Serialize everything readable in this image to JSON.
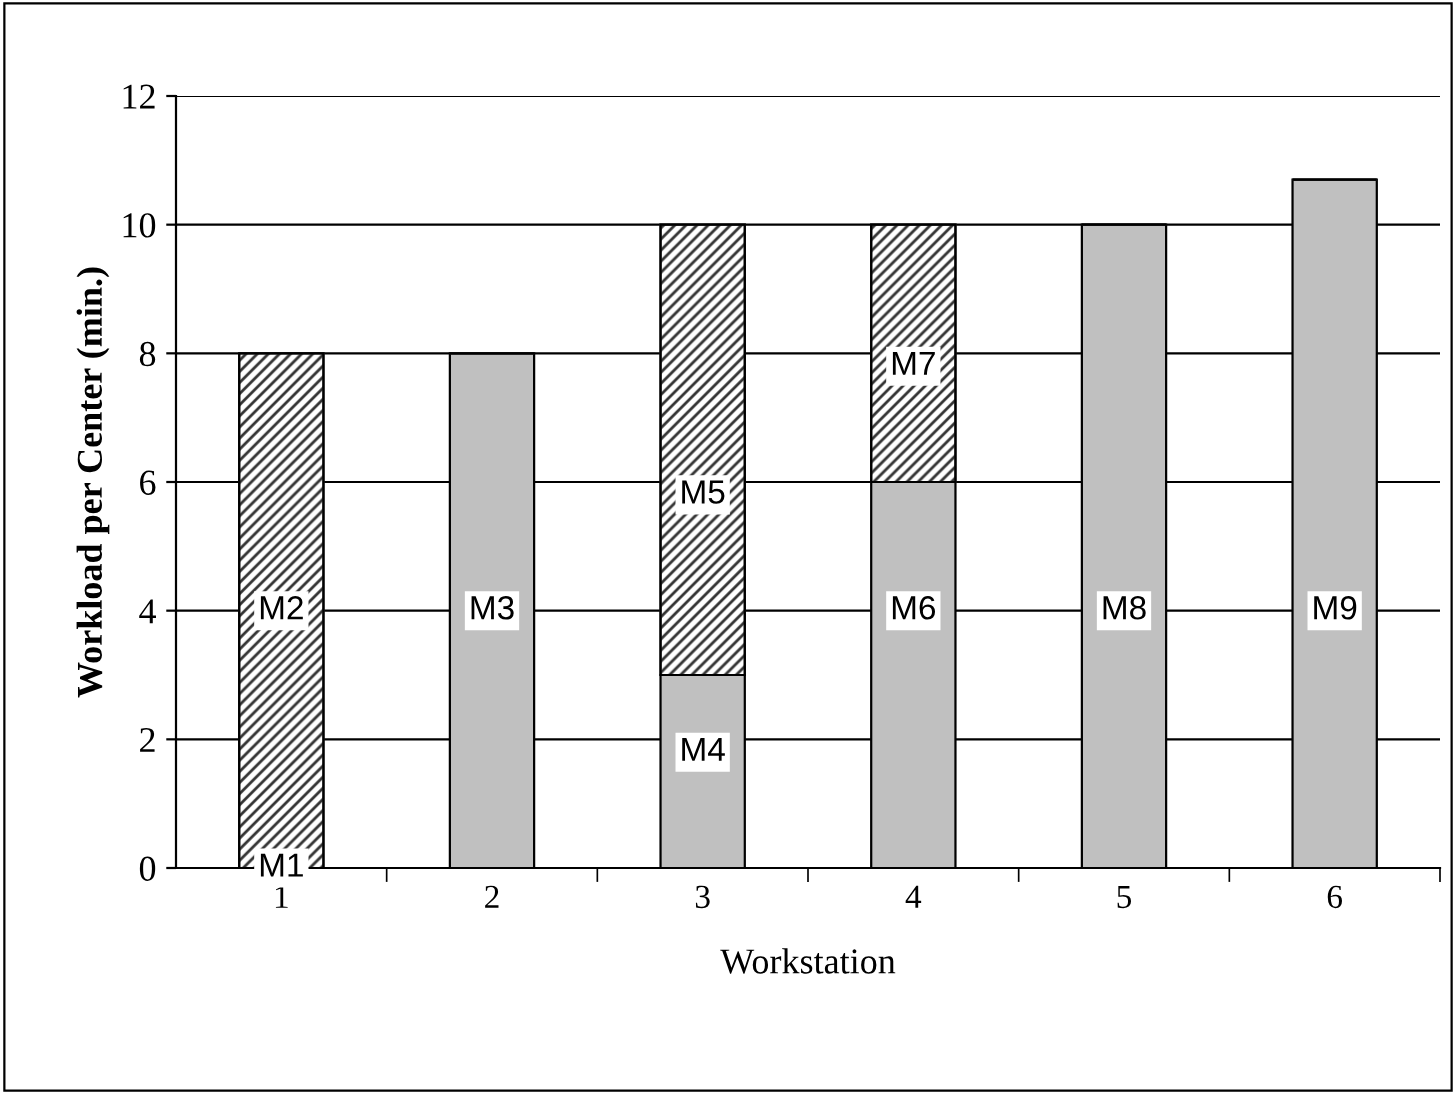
{
  "chart_data": {
    "type": "bar",
    "stacked": true,
    "xlabel": "Workstation",
    "ylabel": "Workload per Center (min.)",
    "categories": [
      "1",
      "2",
      "3",
      "4",
      "5",
      "6"
    ],
    "series": [
      {
        "color": "#c0c0c0",
        "values": [
          0,
          8,
          3,
          6,
          10,
          10.7
        ]
      },
      {
        "color": "#333333",
        "values": [
          8,
          0,
          7,
          4,
          0,
          0
        ]
      }
    ],
    "ylim": [
      0,
      12
    ],
    "yticks": [
      0,
      2,
      4,
      6,
      8,
      10,
      12
    ],
    "grid": "y",
    "annotations": [
      {
        "text": "M1",
        "x": "1",
        "y": 0
      },
      {
        "text": "M2",
        "x": "1",
        "y": 4
      },
      {
        "text": "M3",
        "x": "2",
        "y": 4
      },
      {
        "text": "M4",
        "x": "3",
        "y": 1.8
      },
      {
        "text": "M5",
        "x": "3",
        "y": 5.8
      },
      {
        "text": "M6",
        "x": "4",
        "y": 4
      },
      {
        "text": "M7",
        "x": "4",
        "y": 7.8
      },
      {
        "text": "M8",
        "x": "5",
        "y": 4
      },
      {
        "text": "M9",
        "x": "6",
        "y": 4
      }
    ]
  }
}
